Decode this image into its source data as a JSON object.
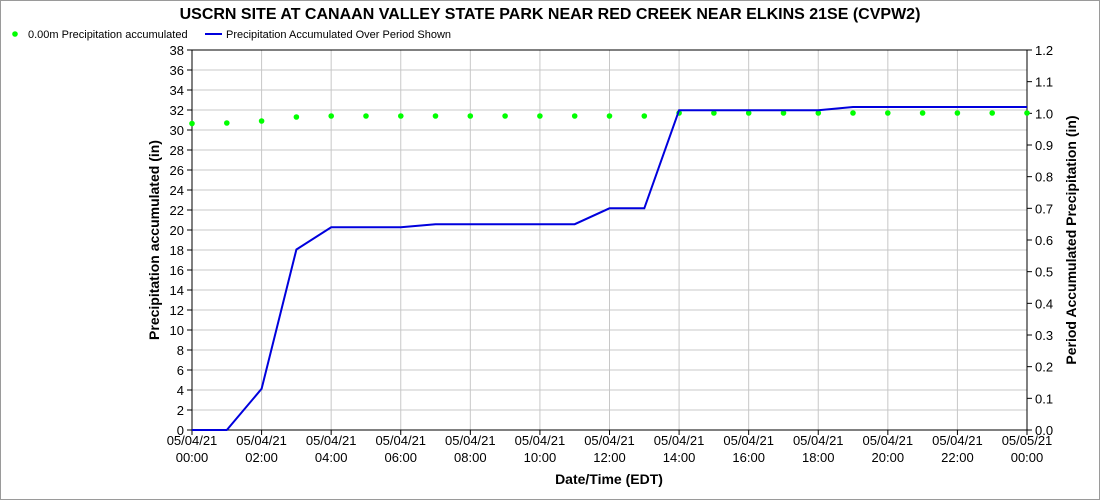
{
  "chart_data": {
    "type": "line",
    "title": "USCRN SITE AT CANAAN VALLEY STATE PARK NEAR RED CREEK NEAR ELKINS 21SE (CVPW2)",
    "xlabel": "Date/Time (EDT)",
    "ylabel_left": "Precipitation accumulated (in)",
    "ylabel_right": "Period Accumulated Precipitation (in)",
    "legend_position": "top-left",
    "grid": true,
    "x_ticks": [
      {
        "date": "05/04/21",
        "time": "00:00"
      },
      {
        "date": "05/04/21",
        "time": "02:00"
      },
      {
        "date": "05/04/21",
        "time": "04:00"
      },
      {
        "date": "05/04/21",
        "time": "06:00"
      },
      {
        "date": "05/04/21",
        "time": "08:00"
      },
      {
        "date": "05/04/21",
        "time": "10:00"
      },
      {
        "date": "05/04/21",
        "time": "12:00"
      },
      {
        "date": "05/04/21",
        "time": "14:00"
      },
      {
        "date": "05/04/21",
        "time": "16:00"
      },
      {
        "date": "05/04/21",
        "time": "18:00"
      },
      {
        "date": "05/04/21",
        "time": "20:00"
      },
      {
        "date": "05/04/21",
        "time": "22:00"
      },
      {
        "date": "05/05/21",
        "time": "00:00"
      }
    ],
    "y_left": {
      "min": 0,
      "max": 38,
      "ticks": [
        "0",
        "2",
        "4",
        "6",
        "8",
        "10",
        "12",
        "14",
        "16",
        "18",
        "20",
        "22",
        "24",
        "26",
        "28",
        "30",
        "32",
        "34",
        "36",
        "38"
      ]
    },
    "y_right": {
      "min": 0,
      "max": 1.2,
      "ticks": [
        "0.0",
        "0.1",
        "0.2",
        "0.3",
        "0.4",
        "0.5",
        "0.6",
        "0.7",
        "0.8",
        "0.9",
        "1.0",
        "1.1",
        "1.2"
      ]
    },
    "series": [
      {
        "name": "0.00m Precipitation accumulated",
        "axis": "left",
        "style": "points",
        "color": "#00ff00",
        "x": [
          "2021-05-04 00:00",
          "2021-05-04 01:00",
          "2021-05-04 02:00",
          "2021-05-04 03:00",
          "2021-05-04 04:00",
          "2021-05-04 05:00",
          "2021-05-04 06:00",
          "2021-05-04 07:00",
          "2021-05-04 08:00",
          "2021-05-04 09:00",
          "2021-05-04 10:00",
          "2021-05-04 11:00",
          "2021-05-04 12:00",
          "2021-05-04 13:00",
          "2021-05-04 14:00",
          "2021-05-04 15:00",
          "2021-05-04 16:00",
          "2021-05-04 17:00",
          "2021-05-04 18:00",
          "2021-05-04 19:00",
          "2021-05-04 20:00",
          "2021-05-04 21:00",
          "2021-05-04 22:00",
          "2021-05-04 23:00",
          "2021-05-05 00:00"
        ],
        "values": [
          30.65,
          30.7,
          30.9,
          31.3,
          31.4,
          31.4,
          31.4,
          31.4,
          31.4,
          31.4,
          31.4,
          31.4,
          31.4,
          31.4,
          31.7,
          31.7,
          31.7,
          31.7,
          31.7,
          31.7,
          31.7,
          31.7,
          31.7,
          31.7,
          31.7
        ]
      },
      {
        "name": "Precipitation Accumulated Over Period Shown",
        "axis": "right",
        "style": "line",
        "color": "#0000dd",
        "x": [
          "2021-05-04 00:00",
          "2021-05-04 01:00",
          "2021-05-04 02:00",
          "2021-05-04 03:00",
          "2021-05-04 04:00",
          "2021-05-04 05:00",
          "2021-05-04 06:00",
          "2021-05-04 07:00",
          "2021-05-04 08:00",
          "2021-05-04 09:00",
          "2021-05-04 10:00",
          "2021-05-04 11:00",
          "2021-05-04 12:00",
          "2021-05-04 13:00",
          "2021-05-04 14:00",
          "2021-05-04 15:00",
          "2021-05-04 16:00",
          "2021-05-04 17:00",
          "2021-05-04 18:00",
          "2021-05-04 19:00",
          "2021-05-04 20:00",
          "2021-05-04 21:00",
          "2021-05-04 22:00",
          "2021-05-04 23:00",
          "2021-05-05 00:00"
        ],
        "values": [
          0.0,
          0.0,
          0.13,
          0.57,
          0.64,
          0.64,
          0.64,
          0.65,
          0.65,
          0.65,
          0.65,
          0.65,
          0.7,
          0.7,
          1.01,
          1.01,
          1.01,
          1.01,
          1.01,
          1.02,
          1.02,
          1.02,
          1.02,
          1.02,
          1.02
        ]
      }
    ]
  }
}
